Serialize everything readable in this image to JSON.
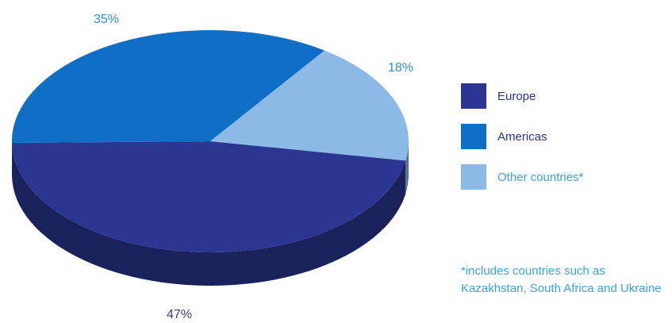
{
  "chart_data": {
    "type": "pie",
    "style": "3d",
    "slices": [
      {
        "label": "Europe",
        "value": 47,
        "value_label": "47%",
        "color": "#2b3592",
        "label_color": "#2b3592"
      },
      {
        "label": "Americas",
        "value": 35,
        "value_label": "35%",
        "color": "#0f6fc6",
        "label_color": "#2b3592"
      },
      {
        "label": "Other countries*",
        "value": 18,
        "value_label": "18%",
        "color": "#8cb9e6",
        "label_color": "#3aa3e0"
      }
    ],
    "legend_position": "right",
    "footnote": "*includes countries such as Kazakhstan, South Africa and Ukraine"
  }
}
